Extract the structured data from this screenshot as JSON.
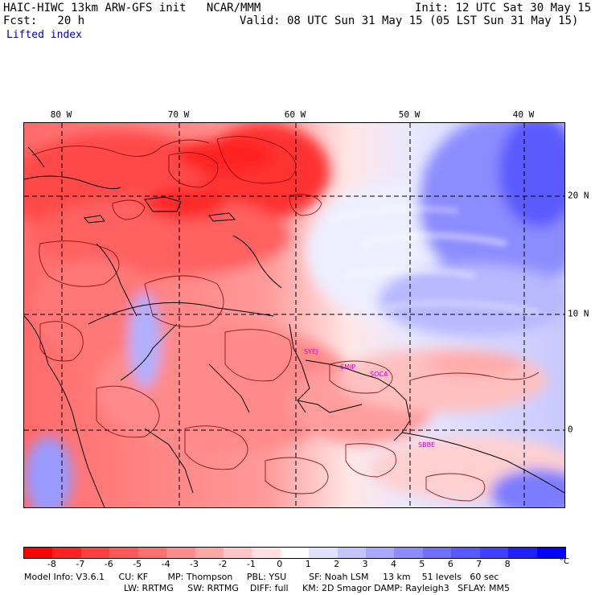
{
  "header": {
    "model_line": "HAIC-HIWC 13km ARW-GFS init   NCAR/MMM",
    "init_line": "Init: 12 UTC Sat 30 May 15",
    "fcst_line": "Fcst:   20 h",
    "valid_line": "Valid: 08 UTC Sun 31 May 15 (05 LST Sun 31 May 15)",
    "field_name": "Lifted index"
  },
  "map": {
    "lon_labels": [
      "80 W",
      "70 W",
      "60 W",
      "50 W",
      "40 W"
    ],
    "lat_labels": [
      "20 N",
      "10 N",
      "0"
    ],
    "stations": [
      "SYEJ",
      "SMJP",
      "SOCA",
      "SBBE"
    ],
    "colors": {
      "deep_red": "#ff2a2a",
      "red": "#ff6060",
      "light_red": "#ff9a9a",
      "pale_red": "#ffd4d4",
      "white": "#ffffff",
      "pale_blue": "#dcdcff",
      "light_blue": "#a8a8ff",
      "blue": "#6464ff",
      "deep_blue": "#2828ff",
      "contour": "#7a0000",
      "coast": "#000000",
      "station": "#e000e0"
    }
  },
  "colorbar": {
    "colors": [
      "#ff0000",
      "#ff2020",
      "#ff4040",
      "#ff5858",
      "#ff7070",
      "#ff8c8c",
      "#ffa8a8",
      "#ffc4c4",
      "#ffe0e0",
      "#ffffff",
      "#e0e0ff",
      "#c4c4ff",
      "#a8a8ff",
      "#8c8cff",
      "#7070ff",
      "#5858ff",
      "#4040ff",
      "#2020ff",
      "#0000ff"
    ],
    "ticks": [
      "-8",
      "-7",
      "-6",
      "-5",
      "-4",
      "-3",
      "-2",
      "-1",
      "0",
      "1",
      "2",
      "3",
      "4",
      "5",
      "6",
      "7",
      "8"
    ],
    "unit": "°C"
  },
  "footer": {
    "line1": "Model Info: V3.6.1     CU: KF       MP: Thompson     PBL: YSU        SF: Noah LSM     13 km    51 levels   60 sec",
    "line2": "LW: RRTMG     SW: RRTMG    DIFF: full     KM: 2D Smagor DAMP: Rayleigh3   SFLAY: MM5"
  }
}
